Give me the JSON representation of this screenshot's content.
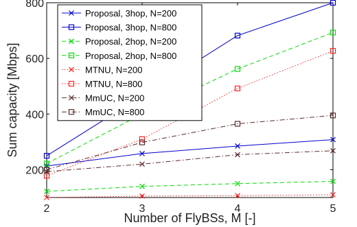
{
  "chart_data": {
    "type": "line",
    "title": "",
    "xlabel": "Number of FlyBSs, M [-]",
    "ylabel": "Sum capacity [Mbps]",
    "x": [
      2,
      3,
      4,
      5
    ],
    "xlim": [
      2,
      5
    ],
    "ylim": [
      100,
      800
    ],
    "x_ticks": [
      "2",
      "3",
      "4",
      "5"
    ],
    "y_ticks": [
      "200",
      "400",
      "600",
      "800"
    ],
    "grid": false,
    "legend_position": "top-left",
    "series": [
      {
        "name": "Proposal, 3hop, N=200",
        "values": [
          213,
          258,
          285,
          308
        ],
        "color": "#0000cc",
        "line": "solid",
        "marker": "x"
      },
      {
        "name": "Proposal, 3hop, N=800",
        "values": [
          250,
          465,
          682,
          800
        ],
        "color": "#0000cc",
        "line": "solid",
        "marker": "square"
      },
      {
        "name": "Proposal, 2hop, N=200",
        "values": [
          122,
          140,
          150,
          158
        ],
        "color": "#00dd00",
        "line": "dashed",
        "marker": "x"
      },
      {
        "name": "Proposal, 2hop, N=800",
        "values": [
          222,
          400,
          562,
          693
        ],
        "color": "#00dd00",
        "line": "dashed",
        "marker": "square"
      },
      {
        "name": "MTNU, N=200",
        "values": [
          100,
          105,
          107,
          110
        ],
        "color": "#ff2222",
        "line": "dotted",
        "marker": "x"
      },
      {
        "name": "MTNU, N=800",
        "values": [
          178,
          310,
          492,
          627
        ],
        "color": "#ff2222",
        "line": "dotted",
        "marker": "square"
      },
      {
        "name": "MmUC, N=200",
        "values": [
          193,
          220,
          254,
          268
        ],
        "color": "#5a2a2a",
        "line": "dashdot",
        "marker": "x"
      },
      {
        "name": "MmUC, N=800",
        "values": [
          200,
          298,
          365,
          395
        ],
        "color": "#5a2a2a",
        "line": "dashdot",
        "marker": "square"
      }
    ]
  }
}
